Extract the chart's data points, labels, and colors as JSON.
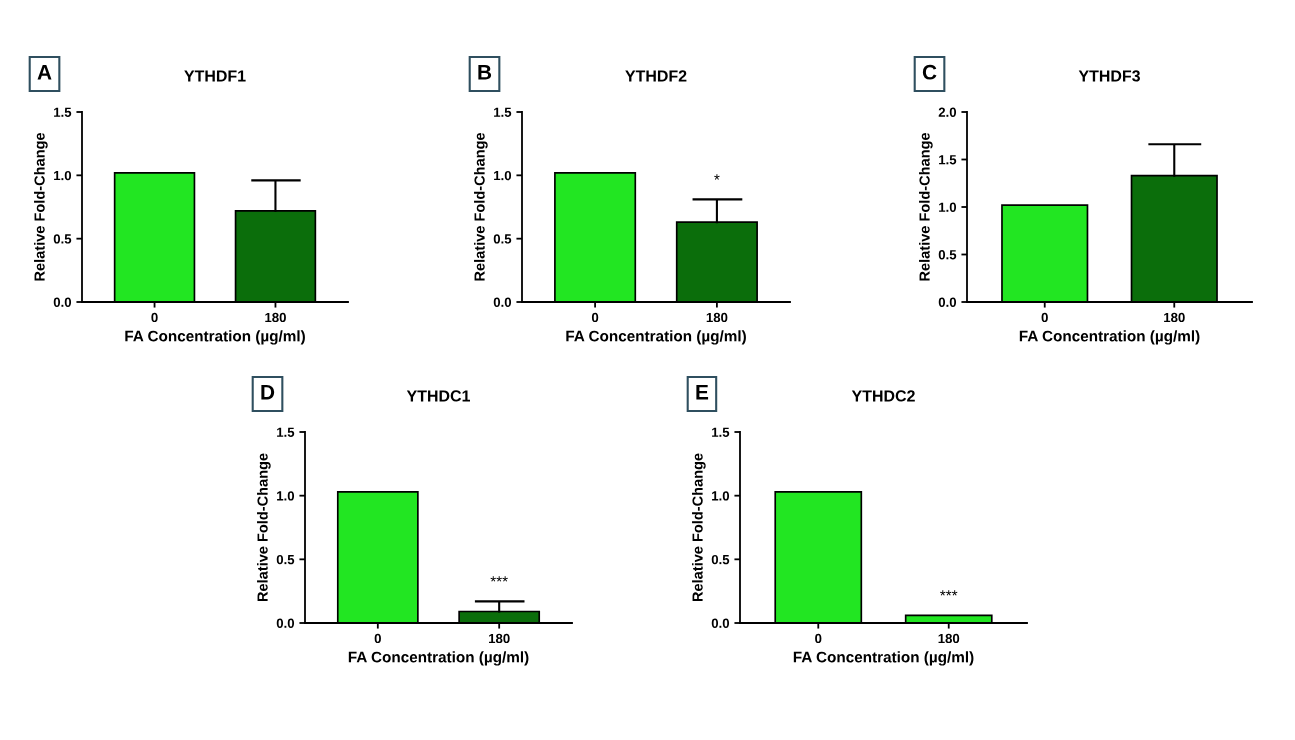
{
  "chart_data": [
    {
      "type": "bar",
      "title": "YTHDF1",
      "xlabel": "FA Concentration (µg/ml)",
      "ylabel": "Relative Fold-Change",
      "categories": [
        "0",
        "180"
      ],
      "values": [
        1.02,
        0.72
      ],
      "colors": [
        "#22e622",
        "#0b6e0b"
      ],
      "errors": [
        null,
        [
          0.72,
          0.96
        ]
      ],
      "ylim": [
        0,
        1.5
      ],
      "yticks": [
        {
          "value": 0,
          "label": "0.0"
        },
        {
          "value": 0.5,
          "label": "0.5"
        },
        {
          "value": 1,
          "label": "1.0"
        },
        {
          "value": 1.5,
          "label": "1.5"
        }
      ],
      "annotations": [
        "A"
      ]
    },
    {
      "type": "bar",
      "title": "YTHDF2",
      "xlabel": "FA Concentration (µg/ml)",
      "ylabel": "Relative Fold-Change",
      "categories": [
        "0",
        "180"
      ],
      "values": [
        1.02,
        0.63
      ],
      "colors": [
        "#22e622",
        "#0b6e0b"
      ],
      "errors": [
        null,
        [
          0.63,
          0.81
        ]
      ],
      "ylim": [
        0,
        1.5
      ],
      "yticks": [
        {
          "value": 0,
          "label": "0.0"
        },
        {
          "value": 0.5,
          "label": "0.5"
        },
        {
          "value": 1,
          "label": "1.0"
        },
        {
          "value": 1.5,
          "label": "1.5"
        }
      ],
      "annotations": [
        "B",
        "*"
      ]
    },
    {
      "type": "bar",
      "title": "YTHDF3",
      "xlabel": "FA Concentration (µg/ml)",
      "ylabel": "Relative Fold-Change",
      "categories": [
        "0",
        "180"
      ],
      "values": [
        1.02,
        1.33
      ],
      "colors": [
        "#22e622",
        "#0b6e0b"
      ],
      "errors": [
        null,
        [
          1.33,
          1.66
        ]
      ],
      "ylim": [
        0,
        2
      ],
      "yticks": [
        {
          "value": 0,
          "label": "0.0"
        },
        {
          "value": 0.5,
          "label": "0.5"
        },
        {
          "value": 1,
          "label": "1.0"
        },
        {
          "value": 1.5,
          "label": "1.5"
        },
        {
          "value": 2,
          "label": "2.0"
        }
      ],
      "annotations": [
        "C"
      ]
    },
    {
      "type": "bar",
      "title": "YTHDC1",
      "xlabel": "FA Concentration (µg/ml)",
      "ylabel": "Relative Fold-Change",
      "categories": [
        "0",
        "180"
      ],
      "values": [
        1.03,
        0.09
      ],
      "colors": [
        "#22e622",
        "#0b6e0b"
      ],
      "errors": [
        null,
        [
          0.09,
          0.17
        ]
      ],
      "ylim": [
        0,
        1.5
      ],
      "yticks": [
        {
          "value": 0,
          "label": "0.0"
        },
        {
          "value": 0.5,
          "label": "0.5"
        },
        {
          "value": 1,
          "label": "1.0"
        },
        {
          "value": 1.5,
          "label": "1.5"
        }
      ],
      "annotations": [
        "D",
        "***"
      ]
    },
    {
      "type": "bar",
      "title": "YTHDC2",
      "xlabel": "FA Concentration (µg/ml)",
      "ylabel": "Relative Fold-Change",
      "categories": [
        "0",
        "180"
      ],
      "values": [
        1.03,
        0.06
      ],
      "colors": [
        "#22e622",
        "#22e622"
      ],
      "ylim": [
        0,
        1.5
      ],
      "yticks": [
        {
          "value": 0,
          "label": "0.0"
        },
        {
          "value": 0.5,
          "label": "0.5"
        },
        {
          "value": 1,
          "label": "1.0"
        },
        {
          "value": 1.5,
          "label": "1.5"
        }
      ],
      "annotations": [
        "E",
        "***"
      ]
    }
  ]
}
